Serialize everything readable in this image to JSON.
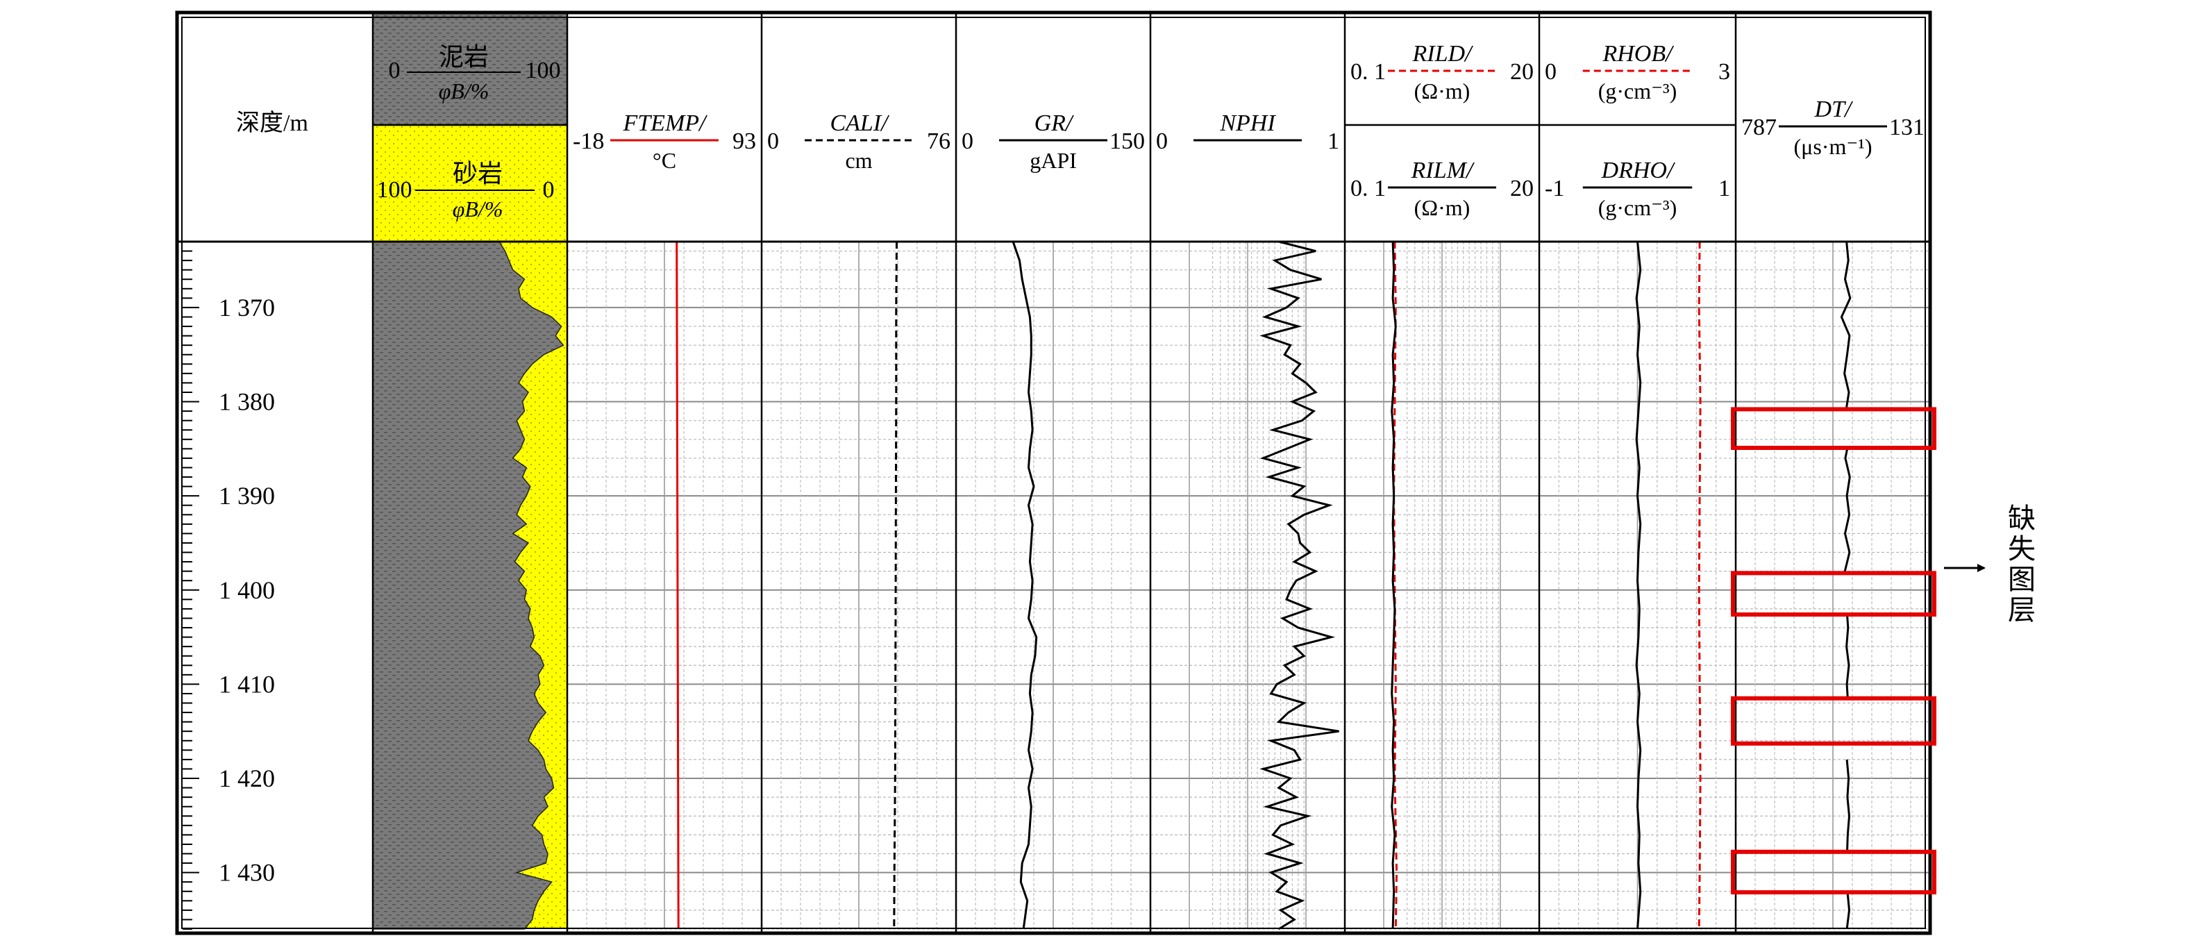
{
  "chart_data": {
    "type": "line",
    "title": "",
    "depth": {
      "label": "深度/m",
      "range": [
        1363,
        1436
      ],
      "ticks": [
        1370,
        1380,
        1390,
        1400,
        1410,
        1420,
        1430
      ],
      "tick_labels": [
        "1 370",
        "1 380",
        "1 390",
        "1 400",
        "1 410",
        "1 420",
        "1 430"
      ]
    },
    "lithology": {
      "mudstone": {
        "name": "泥岩",
        "unit": "φB/%",
        "left": "0",
        "right": "100"
      },
      "sandstone": {
        "name": "砂岩",
        "unit": "φB/%",
        "left": "100",
        "right": "0"
      },
      "sand_percent_depths": [
        1363,
        1364,
        1365,
        1366,
        1367,
        1368,
        1369,
        1370,
        1371,
        1372,
        1373,
        1374,
        1375,
        1376,
        1377,
        1378,
        1379,
        1380,
        1381,
        1382,
        1383,
        1384,
        1385,
        1386,
        1387,
        1388,
        1389,
        1390,
        1391,
        1392,
        1393,
        1394,
        1395,
        1396,
        1397,
        1398,
        1399,
        1400,
        1401,
        1402,
        1403,
        1404,
        1405,
        1406,
        1407,
        1408,
        1409,
        1410,
        1411,
        1412,
        1413,
        1414,
        1415,
        1416,
        1417,
        1418,
        1419,
        1420,
        1421,
        1422,
        1423,
        1424,
        1425,
        1426,
        1427,
        1428,
        1429,
        1430,
        1431,
        1432,
        1433,
        1434,
        1435,
        1436
      ],
      "sand_percent": [
        35,
        32,
        30,
        28,
        22,
        25,
        24,
        18,
        8,
        3,
        6,
        2,
        12,
        18,
        22,
        25,
        20,
        23,
        22,
        26,
        24,
        22,
        24,
        28,
        21,
        23,
        19,
        21,
        24,
        26,
        21,
        28,
        20,
        24,
        27,
        22,
        25,
        21,
        22,
        19,
        20,
        18,
        17,
        19,
        14,
        12,
        15,
        14,
        17,
        15,
        11,
        15,
        18,
        20,
        15,
        12,
        11,
        8,
        7,
        12,
        10,
        15,
        18,
        13,
        12,
        10,
        11,
        26,
        8,
        12,
        15,
        17,
        18,
        22
      ]
    },
    "tracks": [
      {
        "name": "FTEMP/",
        "unit": "°C",
        "min_label": "-18",
        "max_label": "93",
        "range": [
          -18,
          93
        ],
        "color": "#e60000",
        "style": "solid",
        "depths": [
          1363,
          1436
        ],
        "values": [
          44.5,
          45.5
        ]
      },
      {
        "name": "CALI/",
        "unit": "cm",
        "min_label": "0",
        "max_label": "76",
        "range": [
          0,
          76
        ],
        "color": "#000000",
        "style": "dashed",
        "depths": [
          1363,
          1370,
          1380,
          1390,
          1400,
          1410,
          1420,
          1430,
          1436
        ],
        "values": [
          52.8,
          52.6,
          52.6,
          52.5,
          52.4,
          52.3,
          52.2,
          51.9,
          51.8
        ]
      },
      {
        "name": "GR/",
        "unit": "gAPI",
        "min_label": "0",
        "max_label": "150",
        "range": [
          0,
          150
        ],
        "color": "#000000",
        "style": "solid",
        "depths": [
          1363,
          1365,
          1367,
          1369,
          1371,
          1373,
          1375,
          1377,
          1379,
          1381,
          1383,
          1385,
          1387,
          1389,
          1391,
          1393,
          1395,
          1397,
          1399,
          1401,
          1403,
          1405,
          1407,
          1409,
          1411,
          1413,
          1415,
          1417,
          1419,
          1421,
          1423,
          1425,
          1427,
          1429,
          1431,
          1433,
          1436
        ],
        "values": [
          44,
          49,
          51,
          54,
          57,
          58,
          58,
          57,
          56,
          58,
          59,
          57,
          56,
          60,
          56,
          59,
          58,
          57,
          59,
          58,
          56,
          62,
          61,
          58,
          57,
          59,
          58,
          56,
          59,
          56,
          58,
          57,
          56,
          51,
          50,
          55,
          52
        ]
      },
      {
        "name": "NPHI",
        "unit": "",
        "min_label": "0",
        "max_label": "1",
        "range": [
          0,
          1
        ],
        "color": "#000000",
        "style": "solid",
        "depths": [
          1363,
          1364,
          1365,
          1366,
          1367,
          1368,
          1369,
          1370,
          1371,
          1372,
          1373,
          1374,
          1375,
          1376,
          1377,
          1378,
          1379,
          1380,
          1381,
          1382,
          1383,
          1384,
          1385,
          1386,
          1387,
          1388,
          1389,
          1390,
          1391,
          1392,
          1393,
          1394,
          1395,
          1396,
          1397,
          1398,
          1399,
          1400,
          1401,
          1402,
          1403,
          1404,
          1405,
          1406,
          1407,
          1408,
          1409,
          1410,
          1411,
          1412,
          1413,
          1414,
          1415,
          1416,
          1417,
          1418,
          1419,
          1420,
          1421,
          1422,
          1423,
          1424,
          1425,
          1426,
          1427,
          1428,
          1429,
          1430,
          1431,
          1432,
          1433,
          1434,
          1435,
          1436
        ],
        "values": [
          0.66,
          0.85,
          0.64,
          0.72,
          0.88,
          0.62,
          0.76,
          0.7,
          0.59,
          0.76,
          0.58,
          0.72,
          0.69,
          0.77,
          0.73,
          0.8,
          0.85,
          0.73,
          0.84,
          0.78,
          0.63,
          0.82,
          0.7,
          0.58,
          0.76,
          0.61,
          0.79,
          0.73,
          0.92,
          0.79,
          0.71,
          0.76,
          0.77,
          0.82,
          0.74,
          0.85,
          0.75,
          0.72,
          0.7,
          0.82,
          0.68,
          0.76,
          0.93,
          0.74,
          0.79,
          0.69,
          0.74,
          0.65,
          0.62,
          0.79,
          0.71,
          0.66,
          0.97,
          0.62,
          0.74,
          0.77,
          0.58,
          0.72,
          0.66,
          0.75,
          0.6,
          0.81,
          0.67,
          0.63,
          0.73,
          0.6,
          0.77,
          0.62,
          0.7,
          0.65,
          0.78,
          0.67,
          0.74,
          0.66
        ]
      },
      {
        "name": "RILD/",
        "unit": "(Ω·m)",
        "min_label": "0. 1",
        "max_label": "20",
        "range": [
          0.1,
          20
        ],
        "scale": "log",
        "color": "#e60000",
        "style": "dashed",
        "depths": [
          1363,
          1370,
          1380,
          1390,
          1400,
          1410,
          1420,
          1430,
          1436
        ],
        "values": [
          0.39,
          0.4,
          0.39,
          0.38,
          0.39,
          0.4,
          0.39,
          0.41,
          0.4
        ]
      },
      {
        "name": "RILM/",
        "unit": "(Ω·m)",
        "min_label": "0. 1",
        "max_label": "20",
        "range": [
          0.1,
          20
        ],
        "scale": "log",
        "color": "#000000",
        "style": "solid",
        "depths": [
          1363,
          1366,
          1369,
          1372,
          1375,
          1378,
          1381,
          1384,
          1387,
          1390,
          1393,
          1396,
          1399,
          1402,
          1405,
          1408,
          1411,
          1414,
          1417,
          1420,
          1423,
          1426,
          1429,
          1432,
          1436
        ],
        "values": [
          0.37,
          0.38,
          0.37,
          0.4,
          0.37,
          0.38,
          0.36,
          0.38,
          0.37,
          0.38,
          0.37,
          0.38,
          0.37,
          0.39,
          0.38,
          0.37,
          0.36,
          0.38,
          0.37,
          0.38,
          0.36,
          0.39,
          0.37,
          0.38,
          0.37
        ]
      },
      {
        "name": "RHOB/",
        "unit": "(g·cm⁻³)",
        "min_label": "0",
        "max_label": "3",
        "range": [
          0,
          3
        ],
        "color": "#e60000",
        "style": "dashed",
        "depths": [
          1363,
          1370,
          1380,
          1390,
          1400,
          1410,
          1420,
          1430,
          1436
        ],
        "values": [
          2.45,
          2.44,
          2.46,
          2.45,
          2.44,
          2.45,
          2.46,
          2.45,
          2.44
        ]
      },
      {
        "name": "DRHO/",
        "unit": "(g·cm⁻³)",
        "min_label": "-1",
        "max_label": "1",
        "range": [
          -1,
          1
        ],
        "color": "#000000",
        "style": "solid",
        "depths": [
          1363,
          1366,
          1369,
          1372,
          1375,
          1378,
          1381,
          1384,
          1387,
          1390,
          1393,
          1396,
          1399,
          1402,
          1405,
          1408,
          1411,
          1414,
          1417,
          1420,
          1423,
          1426,
          1429,
          1432,
          1436
        ],
        "values": [
          0.0,
          0.03,
          -0.01,
          0.02,
          0.0,
          0.03,
          0.01,
          -0.01,
          0.02,
          0.0,
          0.03,
          0.01,
          0.0,
          0.02,
          0.01,
          -0.01,
          0.02,
          0.0,
          0.03,
          0.01,
          0.0,
          0.02,
          0.01,
          0.03,
          0.0
        ]
      },
      {
        "name": "DT/",
        "unit": "(μs·m⁻¹)",
        "min_label": "787",
        "max_label": "131",
        "range": [
          787,
          131
        ],
        "color": "#000000",
        "style": "solid",
        "segments": [
          {
            "depths": [
              1363,
              1365,
              1367,
              1369,
              1371,
              1373,
              1375,
              1377,
              1379,
              1380.8
            ],
            "values": [
              413,
              407,
              418,
              401,
              430,
              403,
              411,
              420,
              405,
              414
            ]
          },
          {
            "depths": [
              1384.9,
              1386,
              1388,
              1390,
              1392,
              1394,
              1396,
              1398.2
            ],
            "values": [
              410,
              417,
              402,
              412,
              404,
              418,
              403,
              420
            ]
          },
          {
            "depths": [
              1402.6,
              1404,
              1406,
              1408,
              1410,
              1411.5
            ],
            "values": [
              411,
              408,
              413,
              405,
              412,
              409
            ]
          },
          {
            "depths": [
              1418,
              1420,
              1422,
              1424,
              1426,
              1427.8
            ],
            "values": [
              412,
              406,
              410,
              404,
              409,
              411
            ]
          },
          {
            "depths": [
              1432,
              1434,
              1436
            ],
            "values": [
              410,
              404,
              412
            ]
          }
        ]
      }
    ],
    "missing_intervals": [
      [
        1380.8,
        1384.9
      ],
      [
        1398.2,
        1402.6
      ],
      [
        1411.5,
        1416.3
      ],
      [
        1427.8,
        1432.1
      ]
    ],
    "annotation": "缺失图层"
  }
}
